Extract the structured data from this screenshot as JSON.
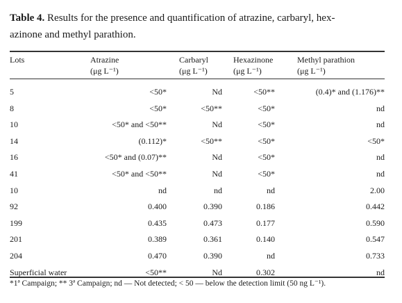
{
  "caption": {
    "label": "Table 4.",
    "line1_text": " Results for the presence and quantification of atrazine, carbaryl, hex-",
    "line2_text": "azinone and methyl parathion."
  },
  "headers": {
    "lots": "Lots",
    "atrazine": "Atrazine",
    "carbaryl": "Carbaryl",
    "hexazinone": "Hexazinone",
    "methyl_parathion": "Methyl parathion",
    "unit": "(μg L⁻¹)"
  },
  "rows": [
    {
      "lots": "5",
      "atrazine": "<50*",
      "carbaryl": "Nd",
      "hexazinone": "<50**",
      "methyl_parathion": "(0.4)* and (1.176)**"
    },
    {
      "lots": "8",
      "atrazine": "<50*",
      "carbaryl": "<50**",
      "hexazinone": "<50*",
      "methyl_parathion": "nd"
    },
    {
      "lots": "10",
      "atrazine": "<50* and <50**",
      "carbaryl": "Nd",
      "hexazinone": "<50*",
      "methyl_parathion": "nd"
    },
    {
      "lots": "14",
      "atrazine": "(0.112)*",
      "carbaryl": "<50**",
      "hexazinone": "<50*",
      "methyl_parathion": "<50*"
    },
    {
      "lots": "16",
      "atrazine": "<50* and (0.07)**",
      "carbaryl": "Nd",
      "hexazinone": "<50*",
      "methyl_parathion": "nd"
    },
    {
      "lots": "41",
      "atrazine": "<50* and <50**",
      "carbaryl": "Nd",
      "hexazinone": "<50*",
      "methyl_parathion": "nd"
    },
    {
      "lots": "10",
      "atrazine": "nd",
      "carbaryl": "nd",
      "hexazinone": "nd",
      "methyl_parathion": "2.00"
    },
    {
      "lots": "92",
      "atrazine": "0.400",
      "carbaryl": "0.390",
      "hexazinone": "0.186",
      "methyl_parathion": "0.442"
    },
    {
      "lots": "199",
      "atrazine": "0.435",
      "carbaryl": "0.473",
      "hexazinone": "0.177",
      "methyl_parathion": "0.590"
    },
    {
      "lots": "201",
      "atrazine": "0.389",
      "carbaryl": "0.361",
      "hexazinone": "0.140",
      "methyl_parathion": "0.547"
    },
    {
      "lots": "204",
      "atrazine": "0.470",
      "carbaryl": "0.390",
      "hexazinone": "nd",
      "methyl_parathion": "0.733"
    },
    {
      "lots": "Superficial water",
      "atrazine": "<50**",
      "carbaryl": "Nd",
      "hexazinone": "0.302",
      "methyl_parathion": "nd"
    }
  ],
  "footnote": "*1ª Campaign; ** 3ª Campaign; nd — Not detected; < 50 — below the detection limit (50 ng L⁻¹)."
}
